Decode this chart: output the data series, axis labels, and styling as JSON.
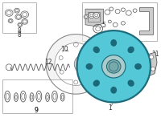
{
  "bg_color": "#ffffff",
  "disc_color": "#55c8d8",
  "disc_edge_color": "#1a6878",
  "line_color": "#555555",
  "text_color": "#333333",
  "box_edge_color": "#aaaaaa",
  "shield_color": "#dddddd",
  "part_color": "#cccccc"
}
